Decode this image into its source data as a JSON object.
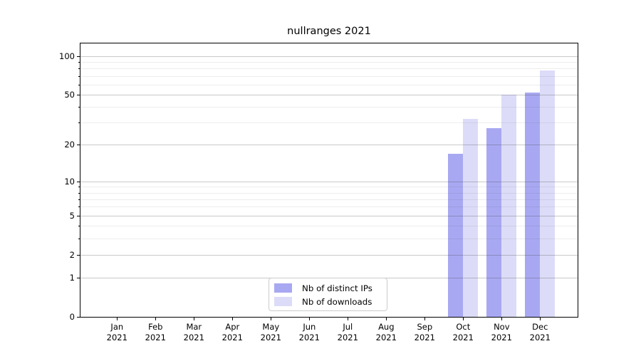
{
  "title": "nullranges 2021",
  "chart_data": {
    "type": "bar",
    "title": "nullranges 2021",
    "categories": [
      "Jan 2021",
      "Feb 2021",
      "Mar 2021",
      "Apr 2021",
      "May 2021",
      "Jun 2021",
      "Jul 2021",
      "Aug 2021",
      "Sep 2021",
      "Oct 2021",
      "Nov 2021",
      "Dec 2021"
    ],
    "series": [
      {
        "name": "Nb of distinct IPs",
        "color": "#a8a8f2",
        "values": [
          0,
          0,
          0,
          0,
          0,
          0,
          0,
          0,
          0,
          17,
          27,
          52
        ]
      },
      {
        "name": "Nb of downloads",
        "color": "#dcdcf8",
        "values": [
          0,
          0,
          0,
          0,
          0,
          0,
          0,
          0,
          0,
          32,
          50,
          77
        ]
      }
    ],
    "xlabel": "",
    "ylabel": "",
    "y_axis": {
      "scale": "log1p",
      "ticks_major": [
        0,
        1,
        2,
        5,
        10,
        20,
        50,
        100
      ],
      "ticks_minor": [
        3,
        4,
        6,
        7,
        8,
        9,
        30,
        40,
        60,
        70,
        80,
        90
      ],
      "ylim": [
        0,
        125
      ]
    },
    "grid": true,
    "legend_position": "lower center"
  },
  "colors": {
    "spine": "#000000",
    "background": "#ffffff",
    "bar_distinct_ips": "#a8a8f2",
    "bar_downloads": "#dcdcf8"
  }
}
